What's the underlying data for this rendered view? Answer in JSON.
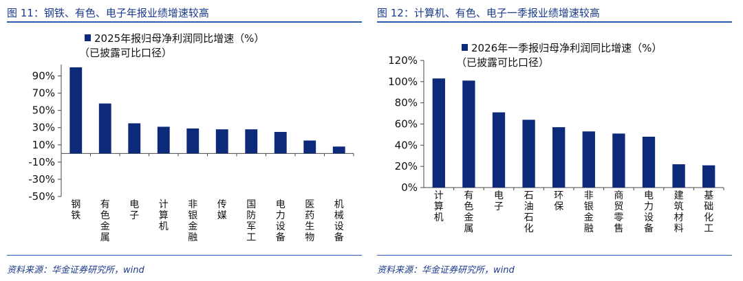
{
  "figures": [
    {
      "title": "图 11：钢铁、有色、电子年报业绩增速较高",
      "source": "资料来源：华金证券研究所，wind"
    },
    {
      "title": "图 12：计算机、有色、电子一季报业绩增速较高",
      "source": "资料来源：华金证券研究所，wind"
    }
  ],
  "colors": {
    "bar": "#0d2a7a",
    "title": "#1a3a8a",
    "rule": "#2b5cb8"
  },
  "chart_data": [
    {
      "type": "bar",
      "title": "",
      "legend": [
        "2025年报归母净利润同比增速（%）",
        "（已披露可比口径）"
      ],
      "categories": [
        "钢铁",
        "有色金属",
        "电子",
        "计算机",
        "非银金融",
        "传媒",
        "国防军工",
        "电力设备",
        "医药生物",
        "机械设备"
      ],
      "values": [
        100,
        58,
        35,
        31,
        29,
        28,
        28,
        25,
        15,
        8
      ],
      "ylim": [
        -50,
        100
      ],
      "yticks": [
        -50,
        -30,
        -10,
        10,
        30,
        50,
        70,
        90
      ],
      "ytick_labels": [
        "-50%",
        "-30%",
        "-10%",
        "10%",
        "30%",
        "50%",
        "70%",
        "90%"
      ],
      "xlabel": "",
      "ylabel": ""
    },
    {
      "type": "bar",
      "title": "",
      "legend": [
        "2026年一季报归母净利润同比增速（%）",
        "（已披露可比口径）"
      ],
      "categories": [
        "计算机",
        "有色金属",
        "电子",
        "石油石化",
        "环保",
        "非银金融",
        "商贸零售",
        "电力设备",
        "建筑材料",
        "基础化工"
      ],
      "values": [
        103,
        101,
        71,
        64,
        57,
        53,
        51,
        48,
        22,
        21
      ],
      "ylim": [
        0,
        120
      ],
      "yticks": [
        0,
        20,
        40,
        60,
        80,
        100,
        120
      ],
      "ytick_labels": [
        "0%",
        "20%",
        "40%",
        "60%",
        "80%",
        "100%",
        "120%"
      ],
      "xlabel": "",
      "ylabel": ""
    }
  ]
}
